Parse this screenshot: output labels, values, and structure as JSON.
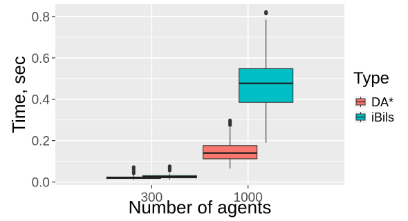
{
  "chart_data": {
    "type": "boxplot",
    "xlabel": "Number of agents",
    "ylabel": "Time, sec",
    "categories": [
      "300",
      "1000"
    ],
    "ylim": [
      -0.015,
      0.86
    ],
    "yticks": [
      0.0,
      0.2,
      0.4,
      0.6,
      0.8
    ],
    "ytick_labels": [
      "0.0",
      "0.2",
      "0.4",
      "0.6",
      "0.8"
    ],
    "grid": true,
    "legend": {
      "title": "Type",
      "placement": "right"
    },
    "series": [
      {
        "name": "DA*",
        "color": "#f8766d",
        "boxes": [
          {
            "category": "300",
            "whisker_low": 0.012,
            "q1": 0.017,
            "median": 0.02,
            "q3": 0.024,
            "whisker_high": 0.034,
            "outliers": [
              0.042,
              0.05,
              0.062,
              0.072
            ]
          },
          {
            "category": "1000",
            "whisker_low": 0.065,
            "q1": 0.112,
            "median": 0.14,
            "q3": 0.176,
            "whisker_high": 0.265,
            "outliers": [
              0.275,
              0.283,
              0.29,
              0.298
            ]
          }
        ]
      },
      {
        "name": "iBils",
        "color": "#00bfc4",
        "boxes": [
          {
            "category": "300",
            "whisker_low": 0.012,
            "q1": 0.02,
            "median": 0.025,
            "q3": 0.031,
            "whisker_high": 0.04,
            "outliers": [
              0.055,
              0.063,
              0.07,
              0.076
            ]
          },
          {
            "category": "1000",
            "whisker_low": 0.19,
            "q1": 0.385,
            "median": 0.477,
            "q3": 0.548,
            "whisker_high": 0.785,
            "outliers": [
              0.815,
              0.822
            ]
          }
        ]
      }
    ]
  }
}
